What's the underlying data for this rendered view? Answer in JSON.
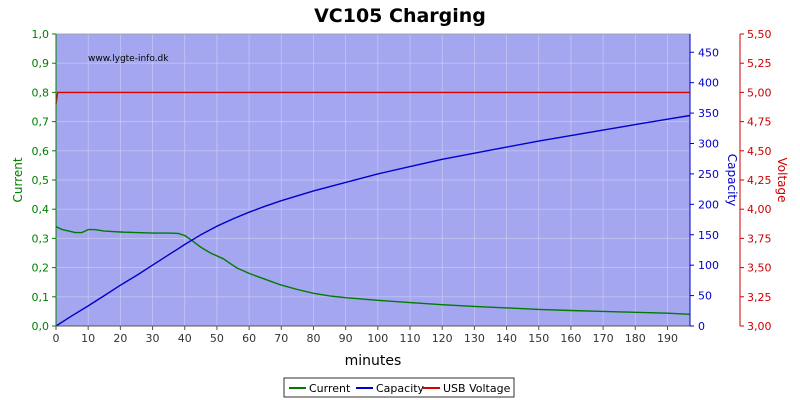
{
  "chart_data": {
    "type": "line",
    "title": "VC105 Charging",
    "watermark": "www.lygte-info.dk",
    "xlabel": "minutes",
    "ylabel_left": "Current",
    "ylabel_right1": "Capacity",
    "ylabel_right2": "Voltage",
    "xlim": [
      0,
      197
    ],
    "ylim_left": [
      0,
      1.0
    ],
    "ylim_right1": [
      0,
      480
    ],
    "ylim_right2": [
      3.0,
      5.5
    ],
    "x_ticks": [
      "0",
      "10",
      "20",
      "30",
      "40",
      "50",
      "60",
      "70",
      "80",
      "90",
      "100",
      "110",
      "120",
      "130",
      "140",
      "150",
      "160",
      "170",
      "180",
      "190"
    ],
    "y_ticks_left": [
      "0,0",
      "0,1",
      "0,2",
      "0,3",
      "0,4",
      "0,5",
      "0,6",
      "0,7",
      "0,8",
      "0,9",
      "1,0"
    ],
    "y_ticks_right1": [
      "0",
      "50",
      "100",
      "150",
      "200",
      "250",
      "300",
      "350",
      "400",
      "450"
    ],
    "y_ticks_right2": [
      "3,00",
      "3,25",
      "3,50",
      "3,75",
      "4,00",
      "4,25",
      "4,50",
      "4,75",
      "5,00",
      "5,25",
      "5,50"
    ],
    "plot_background": "#a4a7ef",
    "grid": true,
    "legend_position": "bottom-center",
    "colors": {
      "left_axis": "#008000",
      "right_axis1": "#0000cc",
      "right_axis2": "#cc0000"
    },
    "series": [
      {
        "name": "Current",
        "axis": "left",
        "color": "#007a00",
        "points": [
          [
            0,
            0.34
          ],
          [
            2,
            0.33
          ],
          [
            4,
            0.325
          ],
          [
            6,
            0.32
          ],
          [
            8,
            0.32
          ],
          [
            10,
            0.33
          ],
          [
            12,
            0.33
          ],
          [
            15,
            0.325
          ],
          [
            20,
            0.322
          ],
          [
            25,
            0.32
          ],
          [
            30,
            0.318
          ],
          [
            35,
            0.318
          ],
          [
            38,
            0.317
          ],
          [
            40,
            0.31
          ],
          [
            42,
            0.295
          ],
          [
            45,
            0.27
          ],
          [
            48,
            0.25
          ],
          [
            52,
            0.23
          ],
          [
            56,
            0.2
          ],
          [
            60,
            0.18
          ],
          [
            65,
            0.16
          ],
          [
            70,
            0.14
          ],
          [
            75,
            0.125
          ],
          [
            80,
            0.112
          ],
          [
            85,
            0.103
          ],
          [
            90,
            0.097
          ],
          [
            100,
            0.088
          ],
          [
            110,
            0.08
          ],
          [
            120,
            0.073
          ],
          [
            130,
            0.067
          ],
          [
            140,
            0.062
          ],
          [
            150,
            0.057
          ],
          [
            160,
            0.053
          ],
          [
            170,
            0.05
          ],
          [
            180,
            0.047
          ],
          [
            190,
            0.044
          ],
          [
            197,
            0.04
          ]
        ]
      },
      {
        "name": "Capacity",
        "axis": "right1",
        "color": "#0000cc",
        "points": [
          [
            0,
            0
          ],
          [
            5,
            17
          ],
          [
            10,
            33
          ],
          [
            15,
            50
          ],
          [
            20,
            67
          ],
          [
            25,
            83
          ],
          [
            30,
            100
          ],
          [
            35,
            117
          ],
          [
            38,
            127
          ],
          [
            40,
            134
          ],
          [
            45,
            150
          ],
          [
            50,
            164
          ],
          [
            55,
            176
          ],
          [
            60,
            187
          ],
          [
            65,
            197
          ],
          [
            70,
            206
          ],
          [
            75,
            214
          ],
          [
            80,
            222
          ],
          [
            90,
            236
          ],
          [
            100,
            250
          ],
          [
            110,
            262
          ],
          [
            120,
            274
          ],
          [
            130,
            284
          ],
          [
            140,
            294
          ],
          [
            150,
            304
          ],
          [
            160,
            313
          ],
          [
            170,
            322
          ],
          [
            180,
            331
          ],
          [
            190,
            340
          ],
          [
            197,
            346
          ]
        ]
      },
      {
        "name": "USB Voltage",
        "axis": "right2",
        "color": "#dd0000",
        "points": [
          [
            0,
            4.9
          ],
          [
            0.5,
            5.0
          ],
          [
            197,
            5.0
          ]
        ]
      }
    ]
  }
}
